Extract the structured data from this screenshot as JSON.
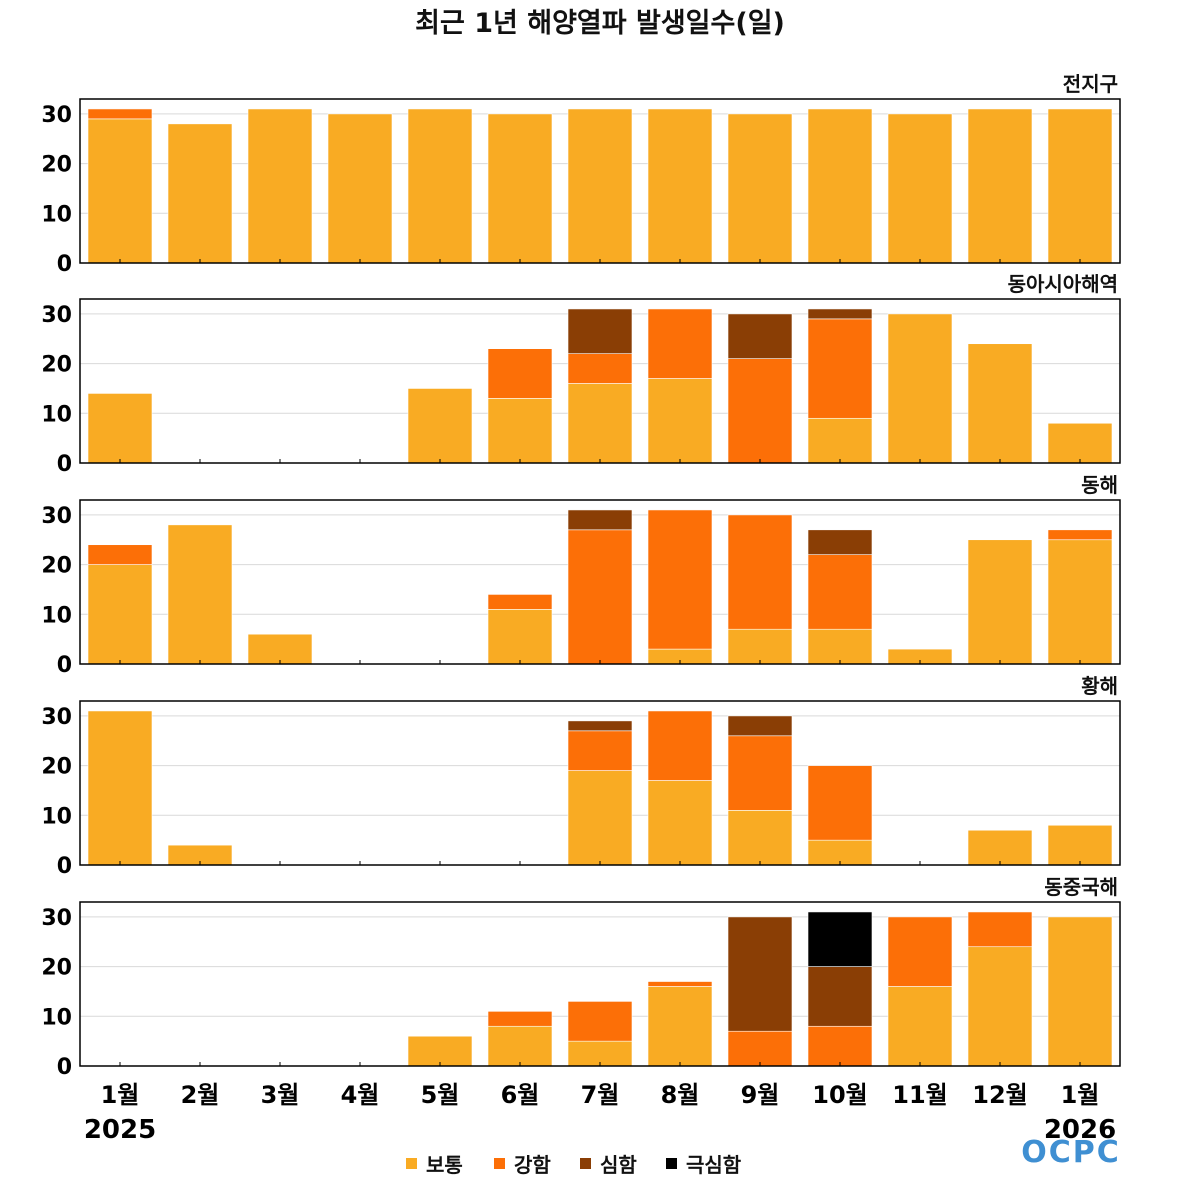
{
  "chart_data": {
    "type": "bar",
    "stacked": true,
    "title": "최근 1년 해양열파 발생일수(일)",
    "categories": [
      "1월",
      "2월",
      "3월",
      "4월",
      "5월",
      "6월",
      "7월",
      "8월",
      "9월",
      "10월",
      "11월",
      "12월",
      "1월"
    ],
    "year_labels": {
      "start": "2025",
      "end": "2026"
    },
    "ylim": [
      0,
      33
    ],
    "yticks": [
      "0",
      "10",
      "20",
      "30"
    ],
    "grid": true,
    "legend_position": "bottom",
    "series_styles": [
      {
        "name": "보통",
        "color": "#F9AB23"
      },
      {
        "name": "강함",
        "color": "#FC6F07"
      },
      {
        "name": "심함",
        "color": "#8A3E05"
      },
      {
        "name": "극심함",
        "color": "#000000"
      }
    ],
    "panels": [
      {
        "title": "전지구",
        "series": [
          {
            "name": "보통",
            "values": [
              29,
              28,
              31,
              30,
              31,
              30,
              31,
              31,
              30,
              31,
              30,
              31,
              31
            ]
          },
          {
            "name": "강함",
            "values": [
              2,
              0,
              0,
              0,
              0,
              0,
              0,
              0,
              0,
              0,
              0,
              0,
              0
            ]
          },
          {
            "name": "심함",
            "values": [
              0,
              0,
              0,
              0,
              0,
              0,
              0,
              0,
              0,
              0,
              0,
              0,
              0
            ]
          },
          {
            "name": "극심함",
            "values": [
              0,
              0,
              0,
              0,
              0,
              0,
              0,
              0,
              0,
              0,
              0,
              0,
              0
            ]
          }
        ]
      },
      {
        "title": "동아시아해역",
        "series": [
          {
            "name": "보통",
            "values": [
              14,
              0,
              0,
              0,
              15,
              13,
              16,
              17,
              0,
              9,
              30,
              24,
              8
            ]
          },
          {
            "name": "강함",
            "values": [
              0,
              0,
              0,
              0,
              0,
              10,
              6,
              14,
              21,
              20,
              0,
              0,
              0
            ]
          },
          {
            "name": "심함",
            "values": [
              0,
              0,
              0,
              0,
              0,
              0,
              9,
              0,
              9,
              2,
              0,
              0,
              0
            ]
          },
          {
            "name": "극심함",
            "values": [
              0,
              0,
              0,
              0,
              0,
              0,
              0,
              0,
              0,
              0,
              0,
              0,
              0
            ]
          }
        ]
      },
      {
        "title": "동해",
        "series": [
          {
            "name": "보통",
            "values": [
              20,
              28,
              6,
              0,
              0,
              11,
              0,
              3,
              7,
              7,
              3,
              25,
              25
            ]
          },
          {
            "name": "강함",
            "values": [
              4,
              0,
              0,
              0,
              0,
              3,
              27,
              28,
              23,
              15,
              0,
              0,
              2
            ]
          },
          {
            "name": "심함",
            "values": [
              0,
              0,
              0,
              0,
              0,
              0,
              4,
              0,
              0,
              5,
              0,
              0,
              0
            ]
          },
          {
            "name": "극심함",
            "values": [
              0,
              0,
              0,
              0,
              0,
              0,
              0,
              0,
              0,
              0,
              0,
              0,
              0
            ]
          }
        ]
      },
      {
        "title": "황해",
        "series": [
          {
            "name": "보통",
            "values": [
              31,
              4,
              0,
              0,
              0,
              0,
              19,
              17,
              11,
              5,
              0,
              7,
              8
            ]
          },
          {
            "name": "강함",
            "values": [
              0,
              0,
              0,
              0,
              0,
              0,
              8,
              14,
              15,
              15,
              0,
              0,
              0
            ]
          },
          {
            "name": "심함",
            "values": [
              0,
              0,
              0,
              0,
              0,
              0,
              2,
              0,
              4,
              0,
              0,
              0,
              0
            ]
          },
          {
            "name": "극심함",
            "values": [
              0,
              0,
              0,
              0,
              0,
              0,
              0,
              0,
              0,
              0,
              0,
              0,
              0
            ]
          }
        ]
      },
      {
        "title": "동중국해",
        "series": [
          {
            "name": "보통",
            "values": [
              0,
              0,
              0,
              0,
              6,
              8,
              5,
              16,
              0,
              0,
              16,
              24,
              30
            ]
          },
          {
            "name": "강함",
            "values": [
              0,
              0,
              0,
              0,
              0,
              3,
              8,
              1,
              7,
              8,
              14,
              7,
              0
            ]
          },
          {
            "name": "심함",
            "values": [
              0,
              0,
              0,
              0,
              0,
              0,
              0,
              0,
              23,
              12,
              0,
              0,
              0
            ]
          },
          {
            "name": "극심함",
            "values": [
              0,
              0,
              0,
              0,
              0,
              0,
              0,
              0,
              0,
              11,
              0,
              0,
              0
            ]
          }
        ]
      }
    ]
  },
  "logo_text": "OCPC"
}
